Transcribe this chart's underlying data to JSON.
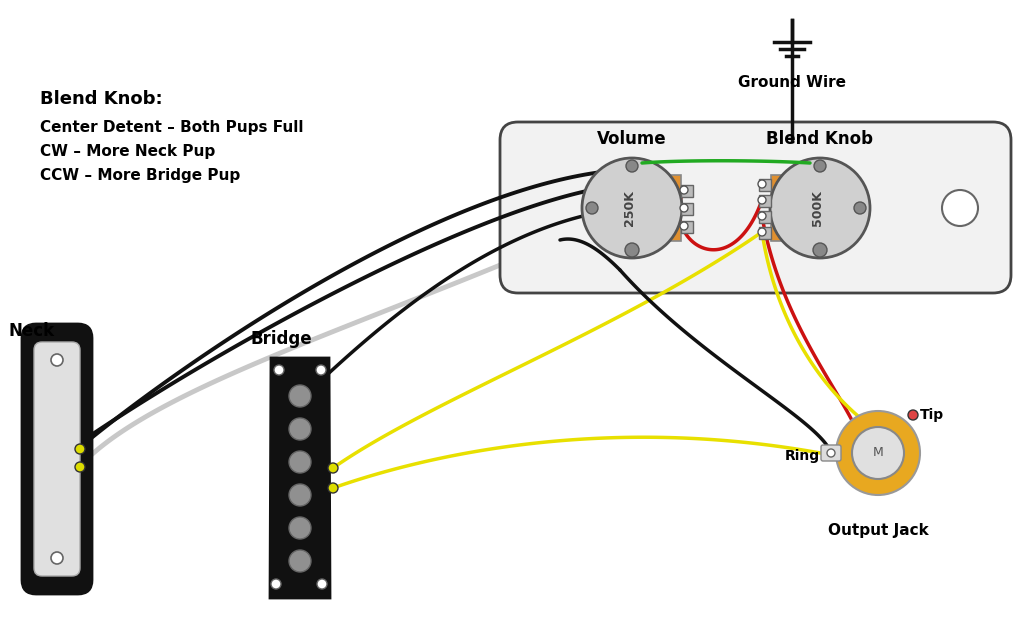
{
  "bg_color": "#ffffff",
  "text_color": "#000000",
  "title_text": "Blend Knob:",
  "subtitle_lines": [
    "Center Detent – Both Pups Full",
    "CW – More Neck Pup",
    "CCW – More Bridge Pup"
  ],
  "ground_wire_label": "Ground Wire",
  "volume_label": "Volume",
  "blend_knob_label": "Blend Knob",
  "neck_label": "Neck",
  "bridge_label": "Bridge",
  "output_jack_label": "Output Jack",
  "tip_label": "Tip",
  "ring_label": "Ring",
  "vol_pot_value": "250K",
  "blend_pot_value": "500K",
  "wire_black": "#111111",
  "wire_white": "#c8c8c8",
  "wire_yellow": "#e8e000",
  "wire_red": "#cc1111",
  "wire_green": "#22aa22",
  "pot_body_color": "#e09030",
  "pot_knob_color": "#d0d0d0",
  "pot_knob_edge": "#555555",
  "control_plate_fill": "#f2f2f2",
  "control_plate_edge": "#444444",
  "pickup_black": "#1a1a1a",
  "pickup_pole_color": "#909090",
  "jack_outer_color": "#e8a820",
  "jack_inner_color": "#e0e0e0"
}
